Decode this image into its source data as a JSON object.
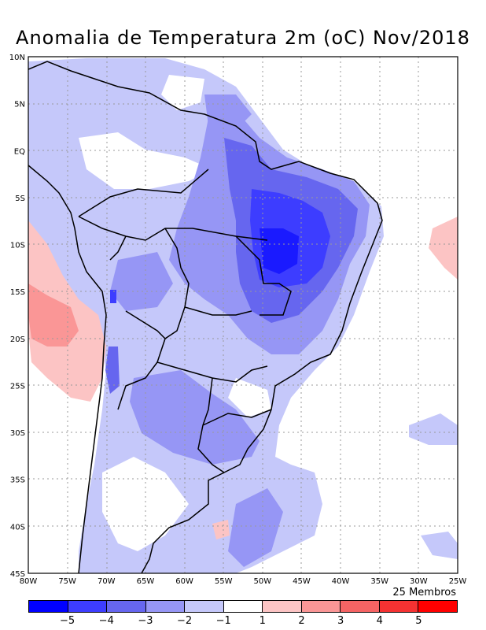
{
  "title": "Anomalia de Temperatura 2m (oC) Nov/2018",
  "members_note": "25 Membros",
  "map": {
    "lat_labels": [
      "10N",
      "5N",
      "EQ",
      "5S",
      "10S",
      "15S",
      "20S",
      "25S",
      "30S",
      "35S",
      "40S",
      "45S"
    ],
    "lon_labels": [
      "80W",
      "75W",
      "70W",
      "65W",
      "60W",
      "55W",
      "50W",
      "45W",
      "40W",
      "35W",
      "30W",
      "25W"
    ],
    "extent": {
      "lon_min": -80,
      "lon_max": -25,
      "lat_min": -45,
      "lat_max": 10
    },
    "gridlines": "dotted"
  },
  "colorbar": {
    "colors": [
      "#0000ff",
      "#3d3dff",
      "#6666ef",
      "#9696f5",
      "#c5c8fa",
      "#ffffff",
      "#fcc4c4",
      "#fa9696",
      "#f56464",
      "#f53232",
      "#ff0000"
    ],
    "labels": [
      "−5",
      "−4",
      "−3",
      "−2",
      "−1",
      "1",
      "2",
      "3",
      "4",
      "5"
    ]
  }
}
